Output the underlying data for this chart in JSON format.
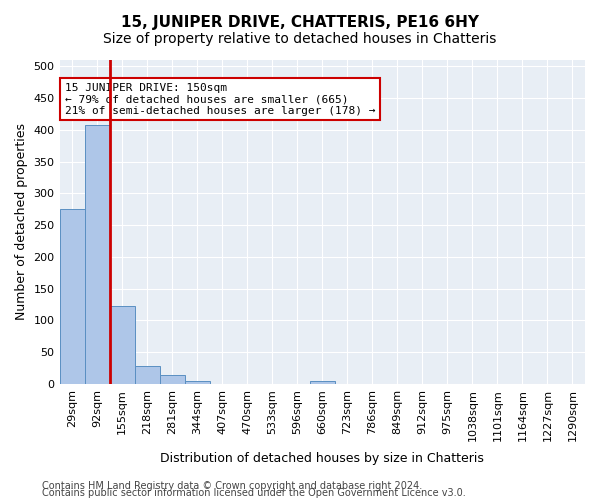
{
  "title": "15, JUNIPER DRIVE, CHATTERIS, PE16 6HY",
  "subtitle": "Size of property relative to detached houses in Chatteris",
  "xlabel": "Distribution of detached houses by size in Chatteris",
  "ylabel": "Number of detached properties",
  "footer1": "Contains HM Land Registry data © Crown copyright and database right 2024.",
  "footer2": "Contains public sector information licensed under the Open Government Licence v3.0.",
  "bin_labels": [
    "29sqm",
    "92sqm",
    "155sqm",
    "218sqm",
    "281sqm",
    "344sqm",
    "407sqm",
    "470sqm",
    "533sqm",
    "596sqm",
    "660sqm",
    "723sqm",
    "786sqm",
    "849sqm",
    "912sqm",
    "975sqm",
    "1038sqm",
    "1101sqm",
    "1164sqm",
    "1227sqm",
    "1290sqm"
  ],
  "bar_values": [
    275,
    408,
    122,
    28,
    14,
    5,
    0,
    0,
    0,
    0,
    5,
    0,
    0,
    0,
    0,
    0,
    0,
    0,
    0,
    0,
    0
  ],
  "bar_color": "#aec6e8",
  "bar_edge_color": "#5a8fc2",
  "red_line_color": "#cc0000",
  "annotation_text": "15 JUNIPER DRIVE: 150sqm\n← 79% of detached houses are smaller (665)\n21% of semi-detached houses are larger (178) →",
  "annotation_box_color": "#ffffff",
  "annotation_box_edge": "#cc0000",
  "ylim": [
    0,
    510
  ],
  "yticks": [
    0,
    50,
    100,
    150,
    200,
    250,
    300,
    350,
    400,
    450,
    500
  ],
  "plot_bg_color": "#e8eef5",
  "title_fontsize": 11,
  "subtitle_fontsize": 10,
  "axis_label_fontsize": 9,
  "tick_fontsize": 8,
  "annotation_fontsize": 8,
  "footer_fontsize": 7
}
